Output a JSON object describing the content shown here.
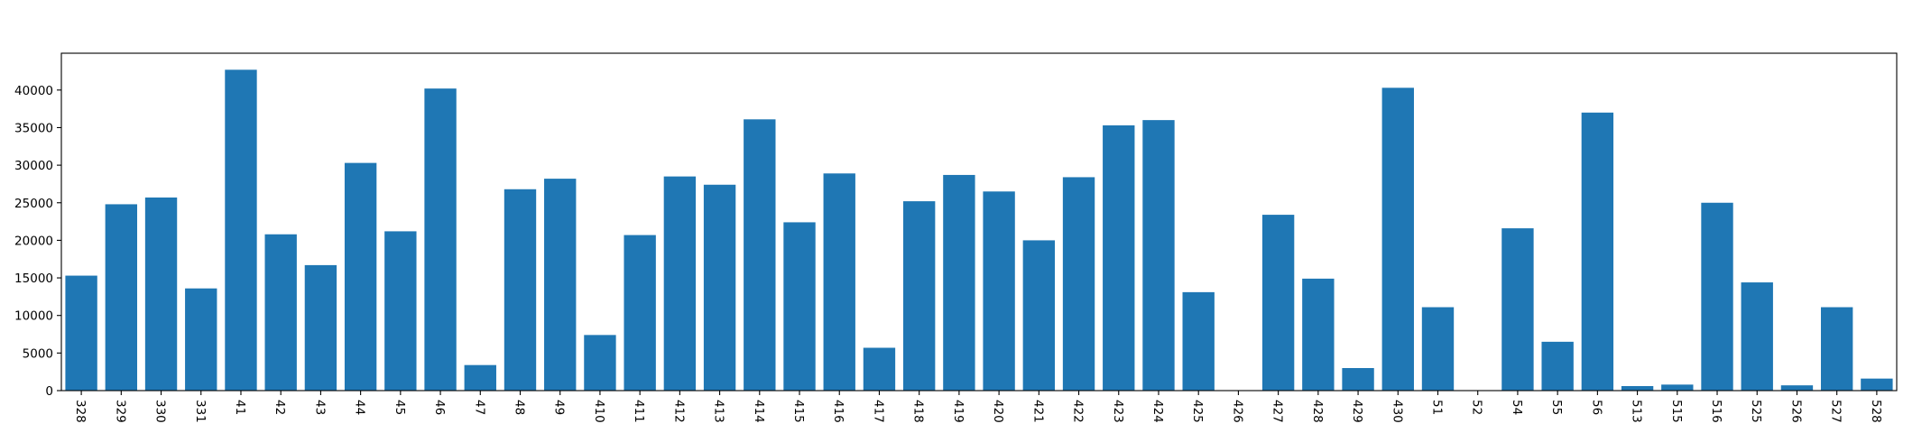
{
  "chart_data": {
    "type": "bar",
    "title": "",
    "xlabel": "",
    "ylabel": "",
    "categories": [
      "328",
      "329",
      "330",
      "331",
      "41",
      "42",
      "43",
      "44",
      "45",
      "46",
      "47",
      "48",
      "49",
      "410",
      "411",
      "412",
      "413",
      "414",
      "415",
      "416",
      "417",
      "418",
      "419",
      "420",
      "421",
      "422",
      "423",
      "424",
      "425",
      "426",
      "427",
      "428",
      "429",
      "430",
      "51",
      "52",
      "54",
      "55",
      "56",
      "513",
      "515",
      "516",
      "525",
      "526",
      "527",
      "528"
    ],
    "values": [
      15300,
      24800,
      25700,
      13600,
      42700,
      20800,
      16700,
      30300,
      21200,
      40200,
      3400,
      26800,
      28200,
      7400,
      20700,
      28500,
      27400,
      36100,
      22400,
      28900,
      5700,
      25200,
      28700,
      26500,
      20000,
      28400,
      35300,
      36000,
      13100,
      0,
      23400,
      14900,
      3000,
      40300,
      11100,
      0,
      21600,
      6500,
      37000,
      600,
      800,
      25000,
      14400,
      700,
      11100,
      1600
    ],
    "ylim": [
      0,
      44900
    ],
    "yticks": [
      0,
      5000,
      10000,
      15000,
      20000,
      25000,
      30000,
      35000,
      40000
    ],
    "grid": false,
    "legend": "none",
    "bar_color": "#1f77b4"
  }
}
